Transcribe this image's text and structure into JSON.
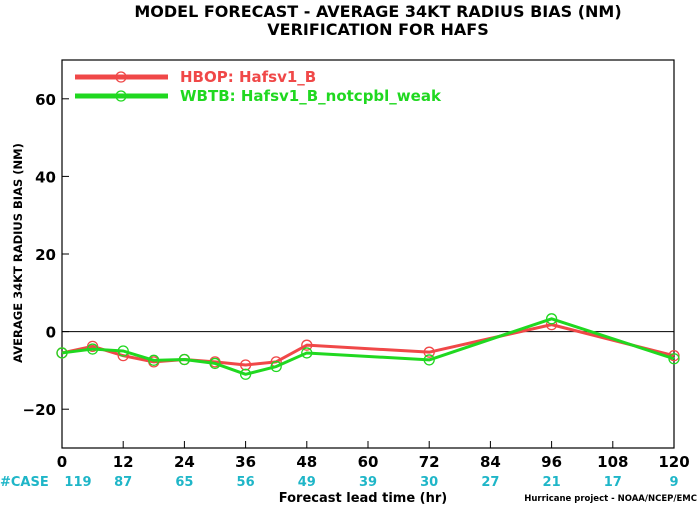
{
  "chart_data": {
    "type": "line",
    "title": "MODEL FORECAST - AVERAGE 34KT RADIUS BIAS (NM)",
    "subtitle": "VERIFICATION FOR HAFS",
    "xlabel": "Forecast lead time (hr)",
    "ylabel": "AVERAGE 34KT RADIUS BIAS (NM)",
    "xlim": [
      0,
      120
    ],
    "ylim": [
      -30,
      70
    ],
    "xticks": [
      0,
      12,
      24,
      36,
      48,
      60,
      72,
      84,
      96,
      108,
      120
    ],
    "xtick_labels": [
      "0",
      "12",
      "24",
      "36",
      "48",
      "60",
      "72",
      "84",
      "96",
      "108",
      "120"
    ],
    "yticks": [
      -20,
      0,
      20,
      40,
      60
    ],
    "ytick_labels": [
      "−20",
      "0",
      "20",
      "40",
      "60"
    ],
    "zero_line": true,
    "legend_position": "top-left",
    "case_label": "#CASE",
    "case_hours": [
      0,
      12,
      24,
      36,
      48,
      60,
      72,
      84,
      96,
      108,
      120
    ],
    "case_counts": [
      "119",
      "87",
      "65",
      "56",
      "49",
      "39",
      "30",
      "27",
      "21",
      "17",
      "9"
    ],
    "credit": "Hurricane project - NOAA/NCEP/EMC",
    "series": [
      {
        "name": "HBOP: Hafsv1_B",
        "color": "#f04848",
        "x": [
          0,
          6,
          12,
          18,
          24,
          30,
          36,
          42,
          48,
          72,
          96,
          120
        ],
        "y": [
          -5.5,
          -3.8,
          -6.2,
          -7.8,
          -7.2,
          -7.8,
          -8.6,
          -7.8,
          -3.5,
          -5.3,
          1.8,
          -6.2
        ]
      },
      {
        "name": "WBTB: Hafsv1_B_notcpbl_weak",
        "color": "#20d820",
        "x": [
          0,
          6,
          12,
          18,
          24,
          30,
          36,
          42,
          48,
          72,
          96,
          120
        ],
        "y": [
          -5.5,
          -4.5,
          -5.0,
          -7.4,
          -7.2,
          -8.2,
          -11.0,
          -9.0,
          -5.5,
          -7.3,
          3.3,
          -7.0
        ]
      }
    ]
  }
}
